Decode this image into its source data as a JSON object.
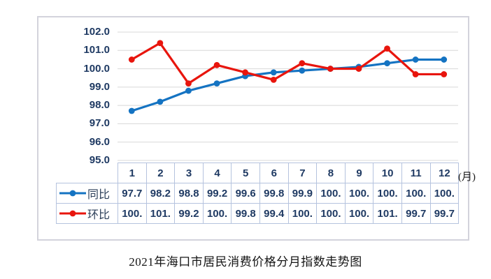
{
  "caption": "2021年海口市居民消费价格分月指数走势图",
  "unit_label": "(月)",
  "colors": {
    "tongbi_blue": "#1473c2",
    "huanbi_red": "#e8150d",
    "grid": "#d8d8d8",
    "chart_border": "#d3d3dc",
    "table_border": "#b5c3de",
    "axis_text": "#1f3a63",
    "caption_text": "#141414"
  },
  "chart_data": {
    "type": "line",
    "title": "2021年海口市居民消费价格分月指数走势图",
    "categories": [
      "1",
      "2",
      "3",
      "4",
      "5",
      "6",
      "7",
      "8",
      "9",
      "10",
      "11",
      "12"
    ],
    "x_unit": "(月)",
    "ylim": [
      95.0,
      102.0
    ],
    "ytick_step": 1.0,
    "ytick_labels": [
      "102.0",
      "101.0",
      "100.0",
      "99.0",
      "98.0",
      "97.0",
      "96.0",
      "95.0"
    ],
    "grid": true,
    "legend_position": "table-rows-left",
    "series": [
      {
        "name": "同比",
        "color": "#1473c2",
        "values": [
          97.7,
          98.2,
          98.8,
          99.2,
          99.6,
          99.8,
          99.9,
          100.0,
          100.1,
          100.3,
          100.5,
          100.5
        ],
        "table_display": [
          "97.7",
          "98.2",
          "98.8",
          "99.2",
          "99.6",
          "99.8",
          "99.9",
          "100.",
          "100.",
          "100.",
          "100.",
          "100."
        ]
      },
      {
        "name": "环比",
        "color": "#e8150d",
        "values": [
          100.5,
          101.4,
          99.2,
          100.2,
          99.8,
          99.4,
          100.3,
          100.0,
          100.0,
          101.1,
          99.7,
          99.7
        ],
        "table_display": [
          "100.",
          "101.",
          "99.2",
          "100.",
          "99.8",
          "99.4",
          "100.",
          "100.",
          "100.",
          "101.",
          "99.7",
          "99.7"
        ]
      }
    ]
  }
}
